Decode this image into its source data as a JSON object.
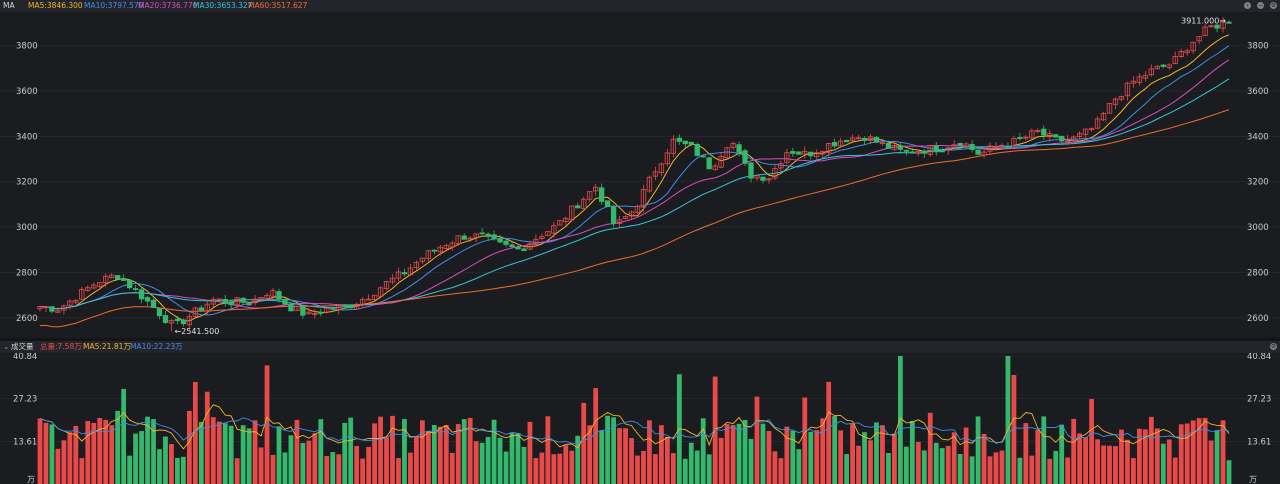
{
  "colors": {
    "background": "#1b1c20",
    "header": "#24252b",
    "grid": "#2b2c33",
    "axis_text": "#c9c9c9",
    "up": "#e84a4a",
    "down": "#34b86c"
  },
  "price_panel": {
    "indicator_name": "MA",
    "legend": [
      {
        "label": "MA5:3846.300",
        "color": "#f0b429"
      },
      {
        "label": "MA10:3797.570",
        "color": "#3d8fe6"
      },
      {
        "label": "MA20:3736.770",
        "color": "#d64ec0"
      },
      {
        "label": "MA30:3653.327",
        "color": "#2ec8d8"
      },
      {
        "label": "MA60:3517.627",
        "color": "#ef6b2c"
      }
    ],
    "y_ticks": [
      "3800",
      "3600",
      "3400",
      "3200",
      "3000",
      "2800",
      "2600"
    ],
    "max_marker": "3911.000",
    "min_marker": "2541.500",
    "controls": [
      "left-arrow-icon",
      "minus-icon",
      "gear-icon"
    ]
  },
  "volume_panel": {
    "title": "成交量",
    "legend": [
      {
        "label": "总量:7.58万",
        "color": "#e84a4a"
      },
      {
        "label": "MA5:21.81万",
        "color": "#f0b429"
      },
      {
        "label": "MA10:22.23万",
        "color": "#3d8fe6"
      }
    ],
    "y_ticks": [
      "40.84",
      "27.23",
      "13.61"
    ],
    "unit": "万",
    "controls": [
      "gear-icon"
    ]
  },
  "chart_data": [
    {
      "type": "candlestick",
      "y_range": [
        2520,
        3930
      ],
      "high": 3911.0,
      "low": 2541.5,
      "moving_averages": {
        "MA5": 3846.3,
        "MA10": 3797.57,
        "MA20": 3736.77,
        "MA30": 3653.327,
        "MA60": 3517.627
      },
      "close_anchors": [
        2650,
        2640,
        2700,
        2760,
        2790,
        2720,
        2640,
        2560,
        2620,
        2680,
        2670,
        2670,
        2720,
        2650,
        2610,
        2640,
        2650,
        2690,
        2750,
        2800,
        2870,
        2920,
        2960,
        2960,
        2920,
        2900,
        2960,
        3010,
        3100,
        3180,
        3000,
        3080,
        3240,
        3380,
        3350,
        3260,
        3390,
        3230,
        3220,
        3340,
        3320,
        3360,
        3390,
        3400,
        3360,
        3330,
        3340,
        3350,
        3380,
        3320,
        3360,
        3380,
        3420,
        3380,
        3390,
        3440,
        3560,
        3640,
        3690,
        3720,
        3810,
        3880,
        3905
      ]
    },
    {
      "type": "bar",
      "series": "volume",
      "unit": "万",
      "y_range": [
        0,
        40.84
      ],
      "last": 7.58,
      "MA5": 21.81,
      "MA10": 22.23
    }
  ]
}
